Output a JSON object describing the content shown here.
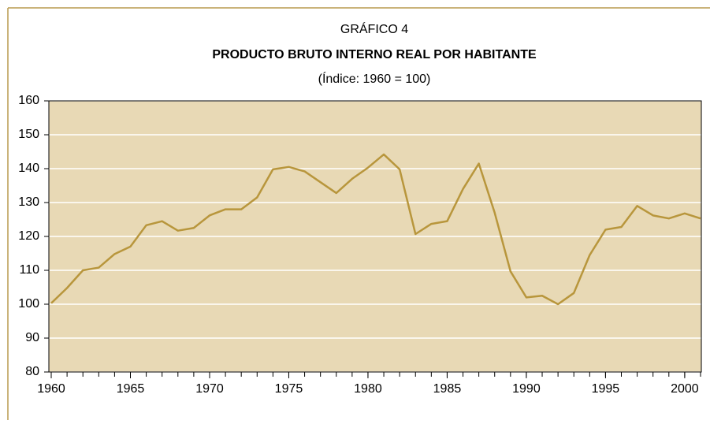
{
  "chart_data": {
    "type": "line",
    "supertitle": "GRÁFICO 4",
    "title": "PRODUCTO BRUTO INTERNO REAL POR HABITANTE",
    "subtitle": "(Índice: 1960 = 100)",
    "x": [
      1960,
      1961,
      1962,
      1963,
      1964,
      1965,
      1966,
      1967,
      1968,
      1969,
      1970,
      1971,
      1972,
      1973,
      1974,
      1975,
      1976,
      1977,
      1978,
      1979,
      1980,
      1981,
      1982,
      1983,
      1984,
      1985,
      1986,
      1987,
      1988,
      1989,
      1990,
      1991,
      1992,
      1993,
      1994,
      1995,
      1996,
      1997,
      1998,
      1999,
      2000,
      2001
    ],
    "series": [
      {
        "color": "#b8963c",
        "values": [
          100.3,
          104.8,
          110,
          110.8,
          114.8,
          117,
          123.3,
          124.5,
          121.7,
          122.5,
          126.2,
          128,
          128,
          131.5,
          139.8,
          140.5,
          139.2,
          136,
          132.8,
          137,
          140.3,
          144.2,
          139.8,
          120.7,
          123.7,
          124.5,
          134,
          141.5,
          127,
          109.7,
          102,
          102.5,
          100,
          103.3,
          114.5,
          122,
          122.8,
          129,
          126.2,
          125.3,
          126.8,
          125.3
        ]
      }
    ],
    "xlim": [
      1959.85,
      2001.05
    ],
    "xticks": [
      1960,
      1965,
      1970,
      1975,
      1980,
      1985,
      1990,
      1995,
      2000
    ],
    "ylim": [
      80,
      160
    ],
    "yticks": [
      80,
      90,
      100,
      110,
      120,
      130,
      140,
      150,
      160
    ],
    "grid": true,
    "background": "#e8d9b5"
  }
}
